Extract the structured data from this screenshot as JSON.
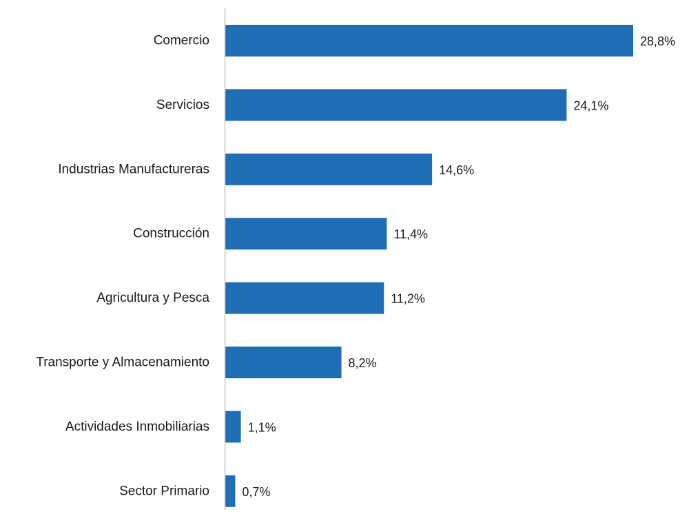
{
  "chart_data": {
    "type": "bar",
    "orientation": "horizontal",
    "categories": [
      "Comercio",
      "Servicios",
      "Industrias Manufactureras",
      "Construcción",
      "Agricultura y Pesca",
      "Transporte y Almacenamiento",
      "Actividades Inmobiliarias",
      "Sector Primario"
    ],
    "values": [
      28.8,
      24.1,
      14.6,
      11.4,
      11.2,
      8.2,
      1.1,
      0.7
    ],
    "value_labels": [
      "28,8%",
      "24,1%",
      "14,6%",
      "11,4%",
      "11,2%",
      "8,2%",
      "1,1%",
      "0,7%"
    ],
    "unit": "%",
    "xlim": [
      0,
      30
    ],
    "grid": false,
    "legend": "none",
    "bar_color": "#1f6db5",
    "axis_color": "#c8c8c8"
  }
}
